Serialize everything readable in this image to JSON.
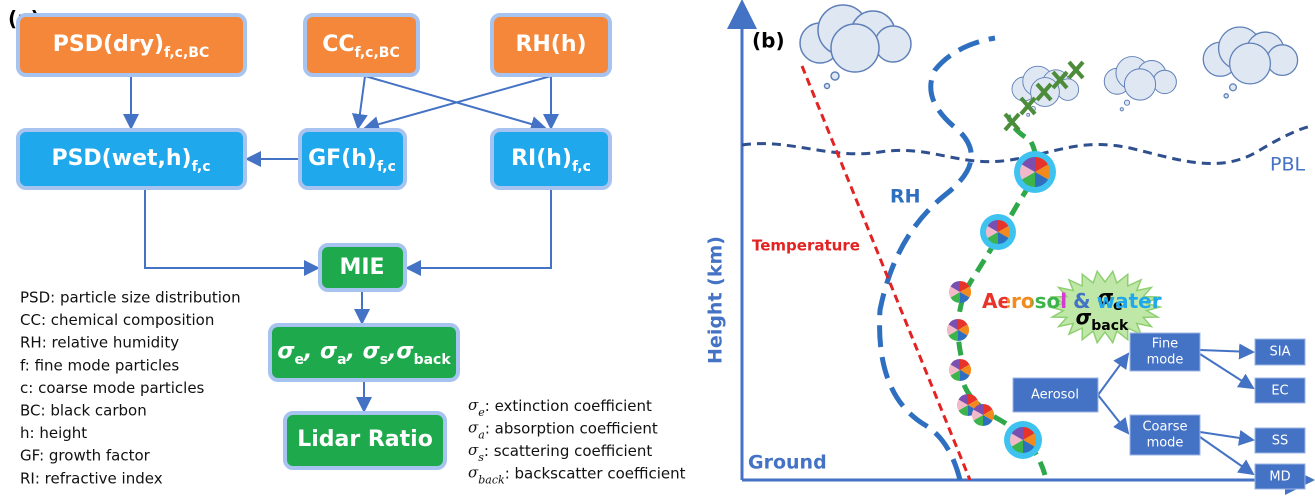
{
  "panel_a": {
    "label": "(a)",
    "nodes": [
      {
        "main": "PSD(dry)",
        "sub": "f,c,BC"
      },
      {
        "main": "CC",
        "sub": "f,c,BC"
      },
      {
        "main": "RH(h)"
      },
      {
        "main": "PSD(wet,h)",
        "sub": "f,c"
      },
      {
        "main": "GF(h)",
        "sub": "f,c"
      },
      {
        "main": "RI(h)",
        "sub": "f,c"
      },
      {
        "main": "MIE"
      },
      {
        "parts": [
          "σ",
          "e",
          ", σ",
          "a",
          ", σ",
          "s",
          ",σ",
          "back"
        ]
      },
      {
        "main": "Lidar Ratio"
      }
    ],
    "abbreviations": [
      "PSD: particle size distribution",
      "CC: chemical composition",
      "RH: relative humidity",
      "f: fine mode particles",
      "c: coarse mode particles",
      "BC: black carbon",
      "h: height",
      "GF: growth factor",
      "RI: refractive index"
    ],
    "coefficients": [
      {
        "sym": "σ",
        "sub": "e",
        "text": ": extinction coefficient"
      },
      {
        "sym": "σ",
        "sub": "a",
        "text": ": absorption coefficient"
      },
      {
        "sym": "σ",
        "sub": "s",
        "text": ": scattering coefficient"
      },
      {
        "sym": "σ",
        "sub": "back",
        "text": ": backscatter coefficient"
      }
    ]
  },
  "panel_b": {
    "label": "(b)",
    "y_axis": "Height (km)",
    "ground": "Ground",
    "pbl": "PBL",
    "rh": "RH",
    "temperature": "Temperature",
    "sigma_e": {
      "sym": "σ",
      "sub": "e"
    },
    "sigma_back": {
      "sym": "σ",
      "sub": "back"
    },
    "aerosol": "Aerosol",
    "amp": "&",
    "water": "water",
    "tree": {
      "root": "Aerosol",
      "fine": [
        "Fine",
        "mode"
      ],
      "coarse": [
        "Coarse",
        "mode"
      ],
      "leaves": [
        "SIA",
        "EC",
        "SS",
        "MD"
      ]
    }
  }
}
